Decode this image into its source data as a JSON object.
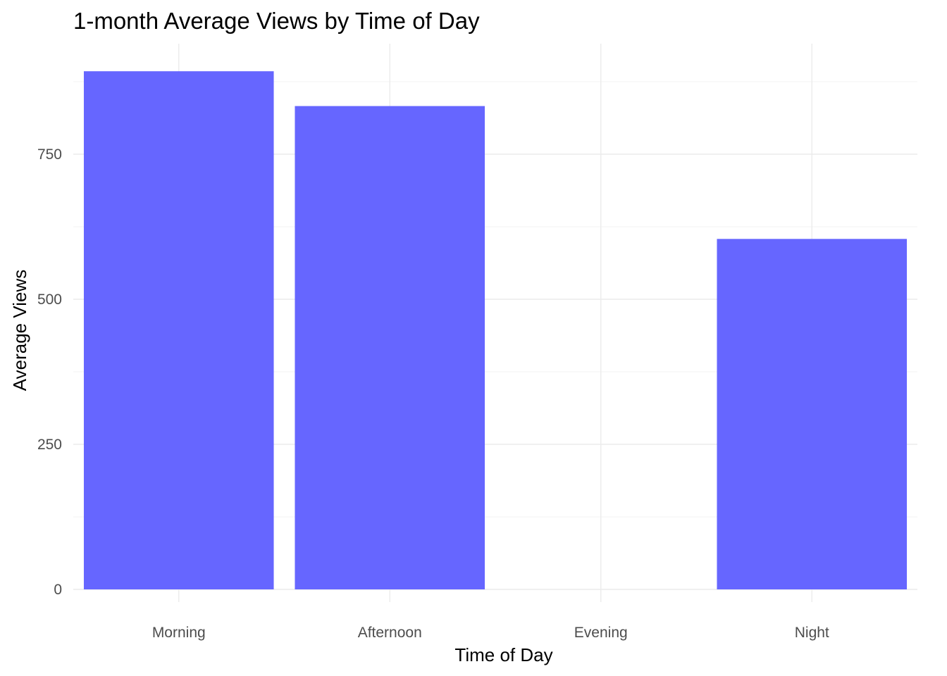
{
  "chart_data": {
    "type": "bar",
    "title": "1-month Average Views by Time of Day",
    "xlabel": "Time of Day",
    "ylabel": "Average Views",
    "categories": [
      "Morning",
      "Afternoon",
      "Evening",
      "Night"
    ],
    "values": [
      893,
      833,
      0,
      604
    ],
    "ylim": [
      0,
      930
    ],
    "yticks": [
      0,
      250,
      500,
      750
    ],
    "ytick_labels": [
      "0",
      "250",
      "500",
      "750"
    ],
    "grid": true,
    "legend": "none",
    "bar_color": "#6666ff"
  }
}
